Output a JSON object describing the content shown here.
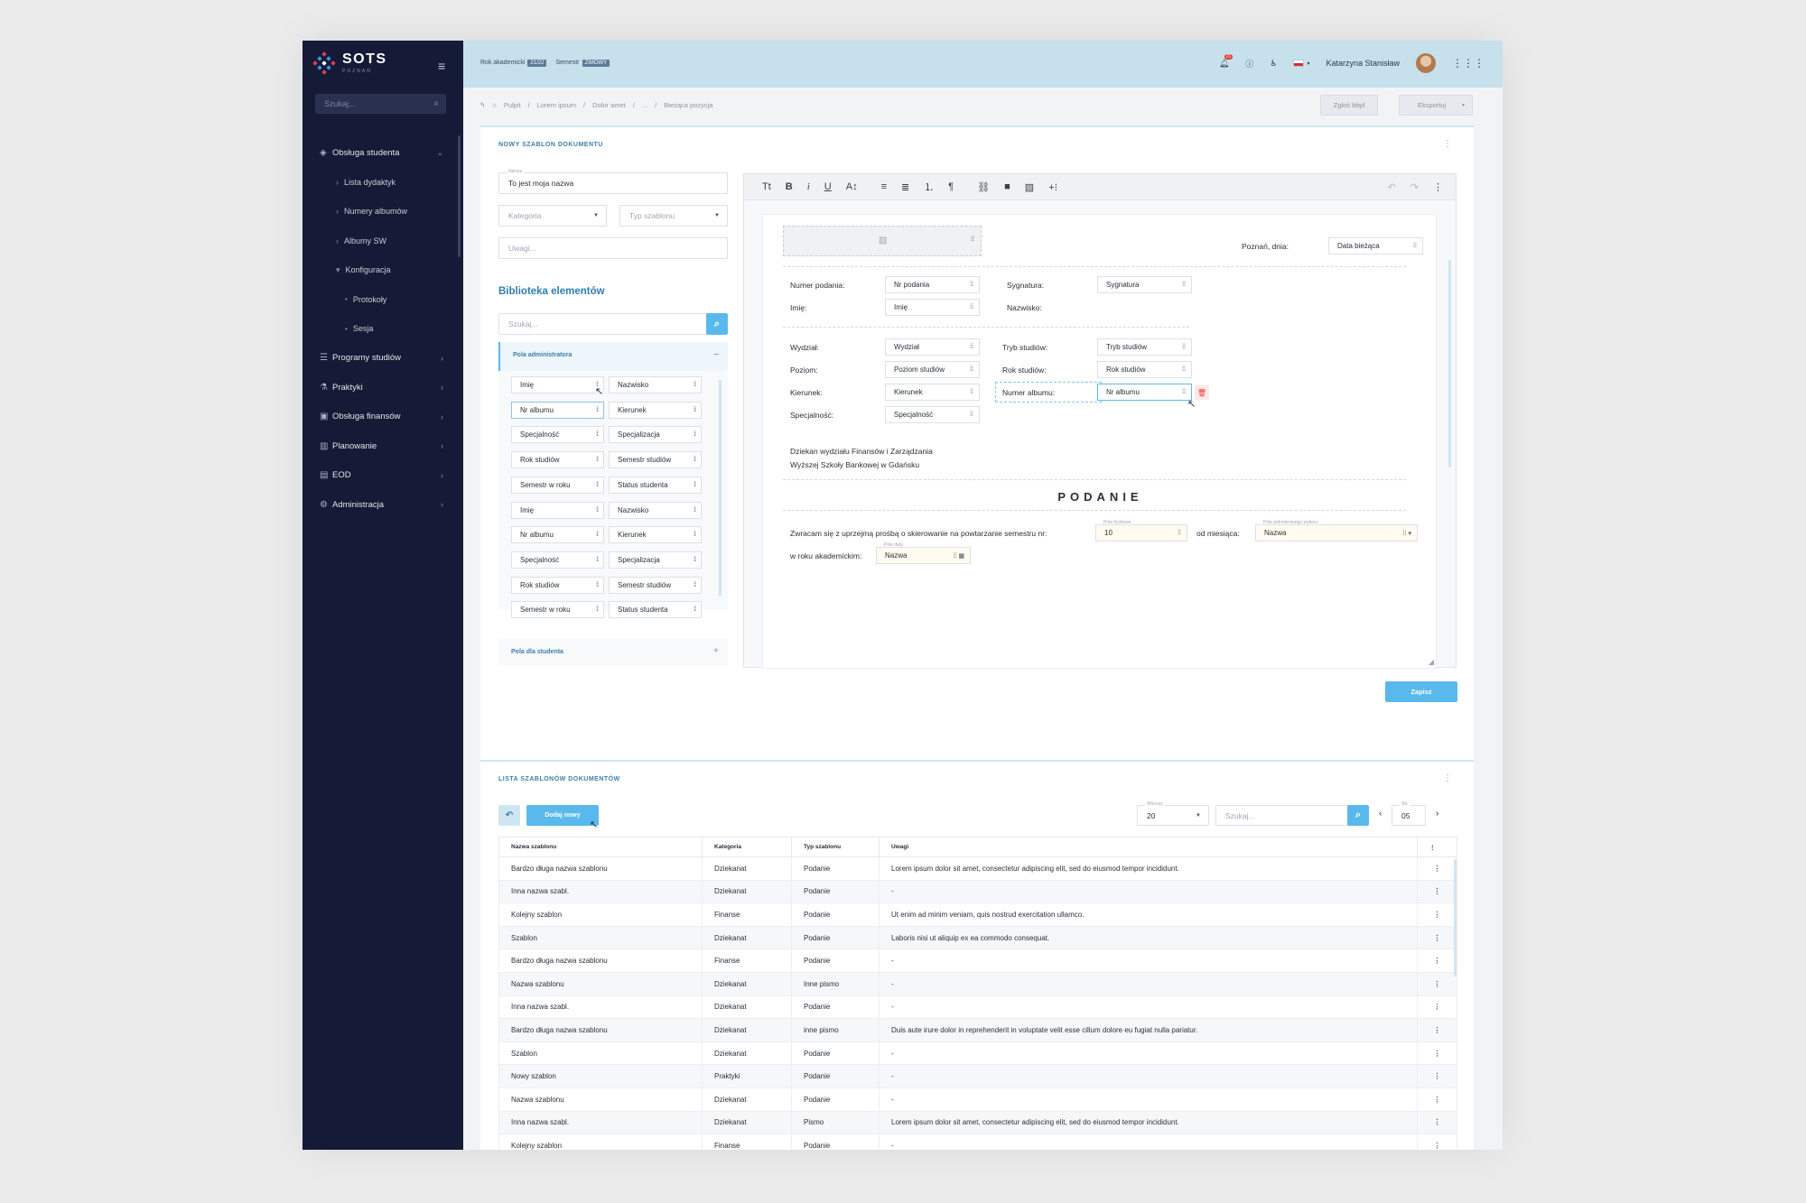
{
  "app": {
    "logo": "SOTS",
    "logo_sub": "POZNAŃ"
  },
  "sidebar": {
    "search_placeholder": "Szukaj...",
    "items": [
      {
        "label": "Obsługa studenta",
        "icon": "graduation-cap-icon"
      },
      {
        "label": "Lista dydaktyk"
      },
      {
        "label": "Numery albumów"
      },
      {
        "label": "Albumy SW"
      },
      {
        "label": "Konfiguracja"
      },
      {
        "label": "Protokoły"
      },
      {
        "label": "Sesja"
      },
      {
        "label": "Programy studiów",
        "icon": "list-icon"
      },
      {
        "label": "Praktyki",
        "icon": "flask-icon"
      },
      {
        "label": "Obsługa finansów",
        "icon": "wallet-icon"
      },
      {
        "label": "Planowanie",
        "icon": "bar-chart-icon"
      },
      {
        "label": "EOD",
        "icon": "folder-icon"
      },
      {
        "label": "Administracja",
        "icon": "gear-icon"
      }
    ]
  },
  "topbar": {
    "year_label": "Rok akademicki",
    "year_value": "21/22",
    "semester_label": "Semestr",
    "semester_value": "ZIMOWY",
    "notif_count": "21",
    "user_name": "Katarzyna Stanisław"
  },
  "breadcrumb": [
    "Pulpit",
    "Lorem ipsum",
    "Dolor amet",
    "...",
    "Bieżąca pozycja"
  ],
  "actions": {
    "report": "Zgłoś błąd",
    "export": "Eksportuj"
  },
  "form": {
    "title": "NOWY SZABLON DOKUMENTU",
    "name_label": "Nazwa",
    "name_value": "To jest moja nazwa",
    "category_placeholder": "Kategoria",
    "type_placeholder": "Typ szablonu",
    "notes_placeholder": "Uwagi...",
    "library_title": "Biblioteka elementów",
    "library_search": "Szukaj...",
    "admin_section": "Pola administratora",
    "student_section": "Pola dla studenta",
    "chips_left": [
      "Imię",
      "Nr albumu",
      "Specjalność",
      "Rok studiów",
      "Semestr w roku",
      "Imię",
      "Nr albumu",
      "Specjalność",
      "Rok studiów",
      "Semestr w roku"
    ],
    "chips_right": [
      "Nazwisko",
      "Kierunek",
      "Specjalizacja",
      "Semestr studiów",
      "Status studenta",
      "Nazwisko",
      "Kierunek",
      "Specjalizacja",
      "Semestr studiów",
      "Status studenta"
    ],
    "save": "Zapisz"
  },
  "doc": {
    "city_date": "Poznań, dnia:",
    "date_field": "Data bieżąca",
    "numer_podania_l": "Numer podania:",
    "numer_podania_f": "Nr podania",
    "sygnatura_l": "Sygnatura:",
    "sygnatura_f": "Sygnatura",
    "imie_l": "Imię:",
    "imie_f": "Imię",
    "nazwisko_l": "Nazwisko:",
    "wydzial_l": "Wydział:",
    "wydzial_f": "Wydział",
    "tryb_l": "Tryb studiów:",
    "tryb_f": "Tryb studiów",
    "poziom_l": "Poziom:",
    "poziom_f": "Poziom studiów",
    "rok_l": "Rok studiów:",
    "rok_f": "Rok studiów",
    "kierunek_l": "Kierunek:",
    "kierunek_f": "Kierunek",
    "album_l": "Numer albumu:",
    "album_f": "Nr albumu",
    "spec_l": "Specjalność:",
    "spec_f": "Specjalność",
    "address1": "Dziekan wydziału Finansów i Zarządzania",
    "address2": "Wyższej Szkoły Bankowej w Gdańsku",
    "heading": "PODANIE",
    "body1": "Zwracam się z uprzejmą prośbą o skierowanie na powtarzanie semestru nr:",
    "num_label": "Pole liczbowe",
    "num_value": "10",
    "body2": "od miesiąca:",
    "sel_label": "Pole jednokrotnego wyboru",
    "sel_value": "Nazwa",
    "body3": "w roku akademickim:",
    "date_label": "Pole daty",
    "date_value": "Nazwa"
  },
  "list": {
    "title": "LISTA SZABLONÓW DOKUMENTÓW",
    "add_new": "Dodaj nowy",
    "rows_label": "Wierszy",
    "rows_value": "20",
    "search_placeholder": "Szukaj...",
    "page_label": "Str.",
    "page_value": "05",
    "columns": [
      "Nazwa szablonu",
      "Kategoria",
      "Typ szablonu",
      "Uwagi"
    ],
    "rows": [
      [
        "Bardzo długa nazwa szablonu",
        "Dziekanat",
        "Podanie",
        "Lorem ipsum dolor sit amet, consectetur adipiscing elit, sed do eiusmod tempor incididunt."
      ],
      [
        "Inna nazwa szabl.",
        "Dziekanat",
        "Podanie",
        "-"
      ],
      [
        "Kolejny szablon",
        "Finanse",
        "Podanie",
        "Ut enim ad minim veniam, quis nostrud exercitation ullamco."
      ],
      [
        "Szablon",
        "Dziekanat",
        "Podanie",
        "Laboris nisi ut aliquip ex ea commodo consequat."
      ],
      [
        "Bardzo długa nazwa szablonu",
        "Finanse",
        "Podanie",
        "-"
      ],
      [
        "Nazwa szablonu",
        "Dziekanat",
        "Inne pismo",
        "-"
      ],
      [
        "Inna nazwa szabl.",
        "Dziekanat",
        "Podanie",
        "-"
      ],
      [
        "Bardzo długa nazwa szablonu",
        "Dziekanat",
        "inne pismo",
        "Duis aute irure dolor in reprehenderit in voluptate velit esse cillum dolore eu fugiat nulla pariatur."
      ],
      [
        "Szablon",
        "Dziekanat",
        "Podanie",
        "-"
      ],
      [
        "Nowy szablon",
        "Praktyki",
        "Podanie",
        "-"
      ],
      [
        "Nazwa szablonu",
        "Dziekanat",
        "Podanie",
        "-"
      ],
      [
        "Inna nazwa szabl.",
        "Dziekanat",
        "Pismo",
        "Lorem ipsum dolor sit amet, consectetur adipiscing elit, sed do eiusmod tempor incididunt."
      ],
      [
        "Kolejny szablon",
        "Finanse",
        "Podanie",
        "-"
      ]
    ]
  }
}
